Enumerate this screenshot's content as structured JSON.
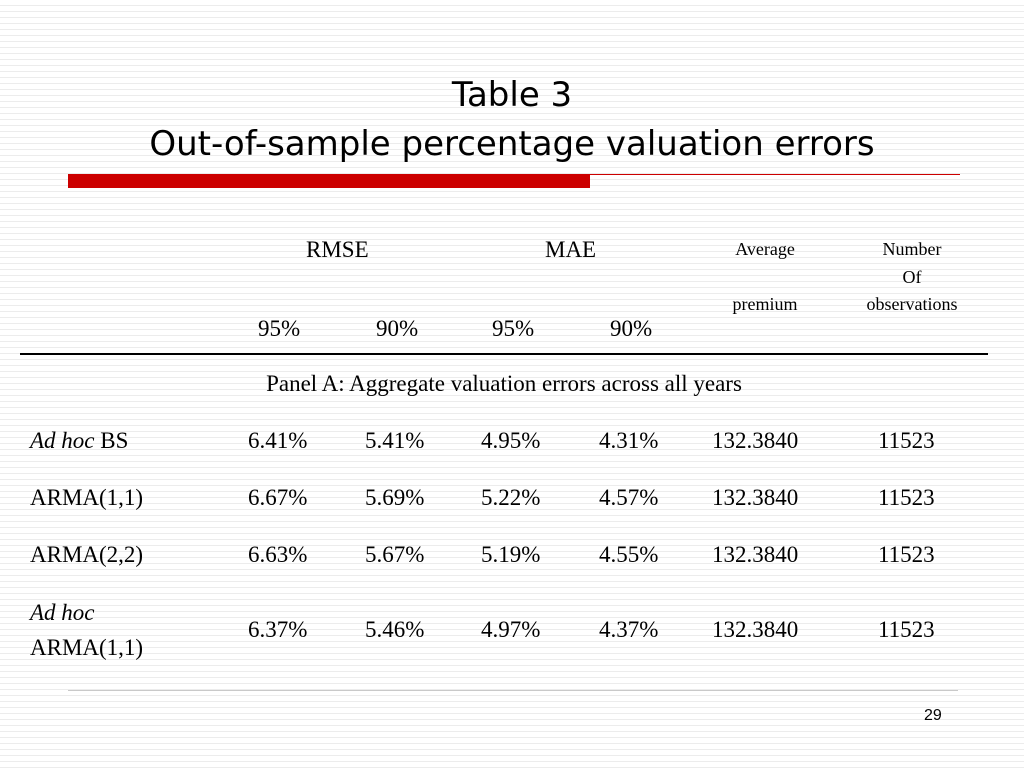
{
  "slide": {
    "title_line1": "Table 3",
    "title_line2": "Out-of-sample percentage valuation errors",
    "page_number": "29",
    "accent_color": "#cc0000"
  },
  "table": {
    "headers": {
      "rmse": "RMSE",
      "mae": "MAE",
      "average_line1": "Average",
      "average_line2": "premium",
      "number_line1": "Number",
      "number_line2": "Of",
      "number_line3": "observations",
      "rmse_95": "95%",
      "rmse_90": "90%",
      "mae_95": "95%",
      "mae_90": "90%"
    },
    "panel_label": "Panel A: Aggregate valuation errors across all years",
    "rows": [
      {
        "label_italic": "Ad hoc",
        "label": "BS",
        "rmse_95": "6.41%",
        "rmse_90": "5.41%",
        "mae_95": "4.95%",
        "mae_90": "4.31%",
        "avg_premium": "132.3840",
        "n_obs": "11523"
      },
      {
        "label_italic": "",
        "label": "ARMA(1,1)",
        "rmse_95": "6.67%",
        "rmse_90": "5.69%",
        "mae_95": "5.22%",
        "mae_90": "4.57%",
        "avg_premium": "132.3840",
        "n_obs": "11523"
      },
      {
        "label_italic": "",
        "label": "ARMA(2,2)",
        "rmse_95": "6.63%",
        "rmse_90": "5.67%",
        "mae_95": "5.19%",
        "mae_90": "4.55%",
        "avg_premium": "132.3840",
        "n_obs": "11523"
      },
      {
        "label_italic": "Ad hoc",
        "label": "ARMA(1,1)",
        "rmse_95": "6.37%",
        "rmse_90": "5.46%",
        "mae_95": "4.97%",
        "mae_90": "4.37%",
        "avg_premium": "132.3840",
        "n_obs": "11523"
      }
    ]
  }
}
